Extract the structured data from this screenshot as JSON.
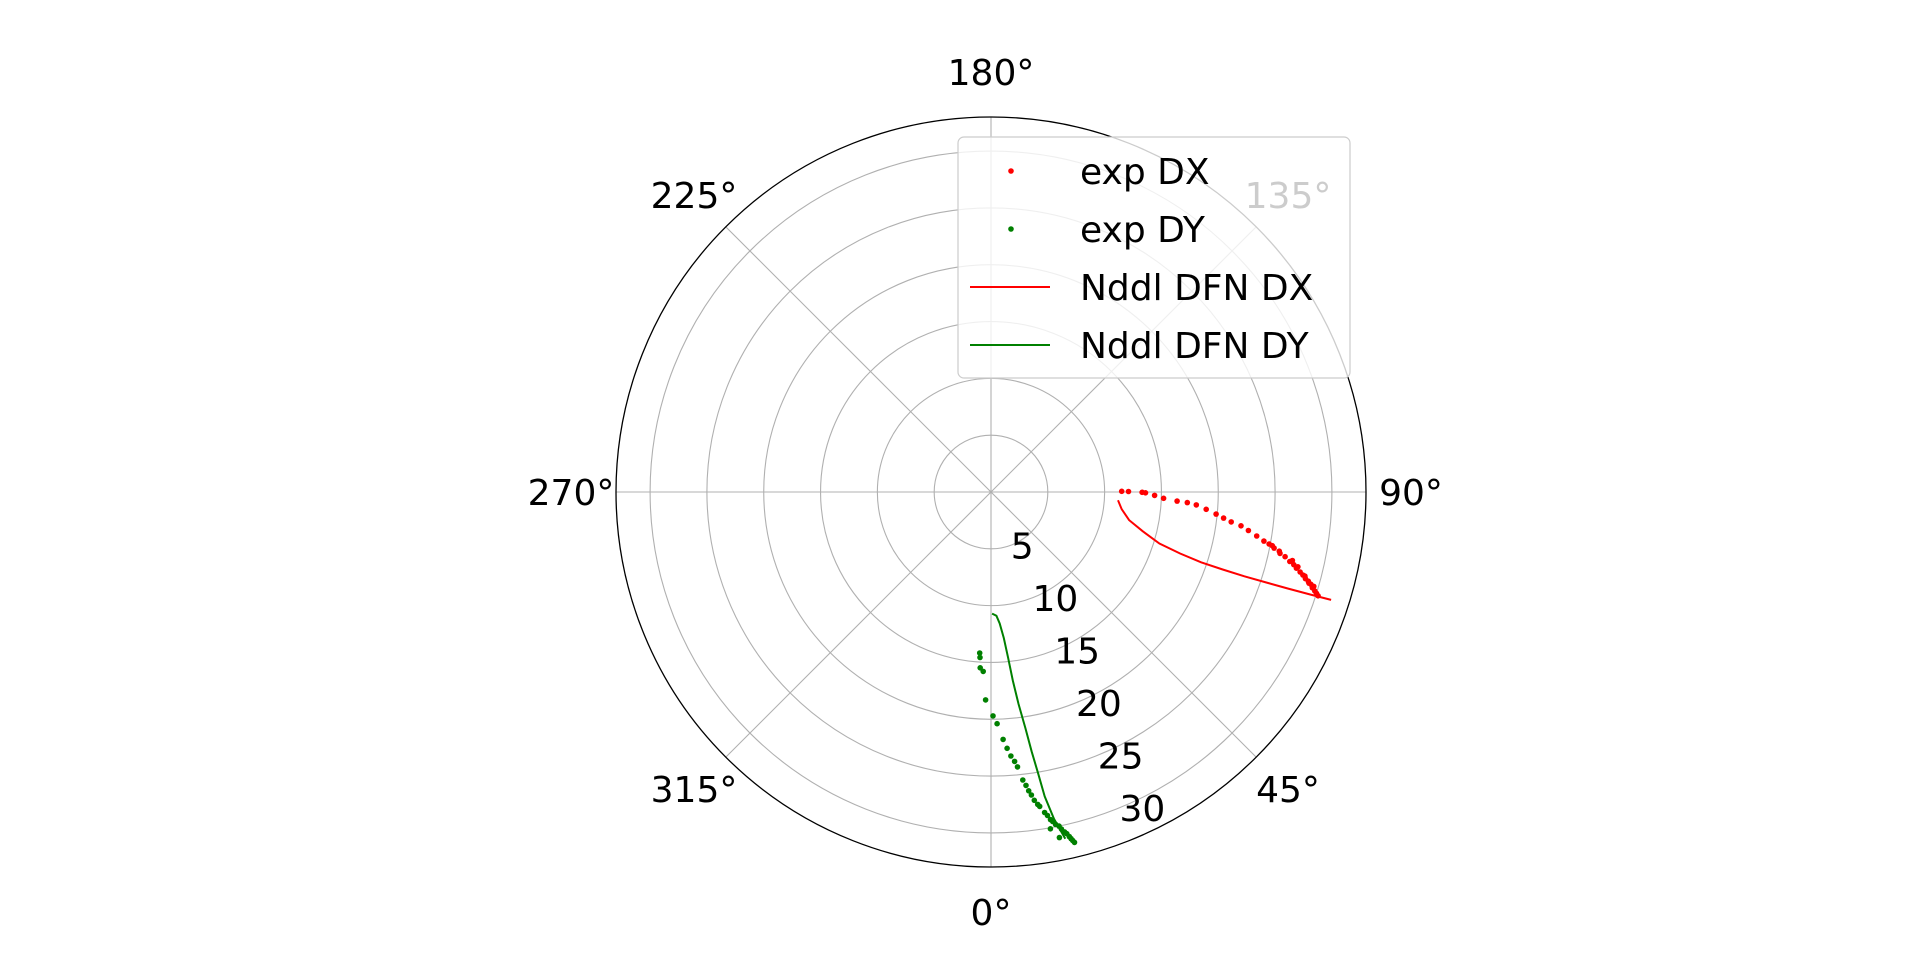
{
  "chart_data": {
    "type": "scatter",
    "projection": "polar",
    "theta_zero_location": "bottom",
    "theta_direction": "counterclockwise",
    "rlim": [
      0,
      33
    ],
    "r_ticks": [
      5,
      10,
      15,
      20,
      25,
      30
    ],
    "r_tick_labels": [
      "5",
      "10",
      "15",
      "20",
      "25",
      "30"
    ],
    "theta_ticks": [
      0,
      45,
      90,
      135,
      180,
      225,
      270,
      315
    ],
    "theta_tick_labels": [
      "0°",
      "45°",
      "90°",
      "135°",
      "180°",
      "225°",
      "270°",
      "315°"
    ],
    "grid": true,
    "legend_position": "top-right",
    "series": [
      {
        "name": "exp DX",
        "kind": "points",
        "color": "#ff0000",
        "points": [
          {
            "theta": 90.3,
            "r": 11.5
          },
          {
            "theta": 90.2,
            "r": 12.1
          },
          {
            "theta": 89.9,
            "r": 13.3
          },
          {
            "theta": 89.7,
            "r": 13.6
          },
          {
            "theta": 88.8,
            "r": 14.4
          },
          {
            "theta": 87.9,
            "r": 15.2
          },
          {
            "theta": 87.2,
            "r": 16.4
          },
          {
            "theta": 86.9,
            "r": 17.3
          },
          {
            "theta": 86.4,
            "r": 18.1
          },
          {
            "theta": 85.4,
            "r": 19.0
          },
          {
            "theta": 84.4,
            "r": 19.9
          },
          {
            "theta": 83.6,
            "r": 20.6
          },
          {
            "theta": 82.9,
            "r": 21.3
          },
          {
            "theta": 82.3,
            "r": 22.2
          },
          {
            "theta": 81.5,
            "r": 22.9
          },
          {
            "theta": 80.6,
            "r": 23.7
          },
          {
            "theta": 79.8,
            "r": 24.4
          },
          {
            "theta": 79.4,
            "r": 24.9
          },
          {
            "theta": 78.8,
            "r": 25.4
          },
          {
            "theta": 78.0,
            "r": 26.0
          },
          {
            "theta": 77.6,
            "r": 26.5
          },
          {
            "theta": 76.9,
            "r": 27.0
          },
          {
            "theta": 76.5,
            "r": 27.4
          },
          {
            "theta": 76.0,
            "r": 27.7
          },
          {
            "theta": 75.5,
            "r": 28.1
          },
          {
            "theta": 75.1,
            "r": 28.4
          },
          {
            "theta": 74.6,
            "r": 28.7
          },
          {
            "theta": 74.3,
            "r": 29.0
          },
          {
            "theta": 73.9,
            "r": 29.3
          },
          {
            "theta": 73.4,
            "r": 29.5
          },
          {
            "theta": 73.0,
            "r": 29.8
          },
          {
            "theta": 72.7,
            "r": 30.0
          },
          {
            "theta": 76.3,
            "r": 27.8
          },
          {
            "theta": 75.0,
            "r": 28.6
          },
          {
            "theta": 74.0,
            "r": 29.1
          },
          {
            "theta": 77.2,
            "r": 27.2
          },
          {
            "theta": 78.4,
            "r": 25.9
          },
          {
            "theta": 79.2,
            "r": 25.2
          },
          {
            "theta": 72.4,
            "r": 30.2
          },
          {
            "theta": 73.7,
            "r": 29.6
          }
        ]
      },
      {
        "name": "exp DY",
        "kind": "points",
        "color": "#008000",
        "points": [
          {
            "theta": -4.0,
            "r": 14.2
          },
          {
            "theta": -3.8,
            "r": 14.6
          },
          {
            "theta": -3.5,
            "r": 15.5
          },
          {
            "theta": -2.5,
            "r": 15.8
          },
          {
            "theta": -1.5,
            "r": 18.3
          },
          {
            "theta": 0.5,
            "r": 19.7
          },
          {
            "theta": 1.5,
            "r": 20.4
          },
          {
            "theta": 2.8,
            "r": 21.8
          },
          {
            "theta": 3.6,
            "r": 22.6
          },
          {
            "theta": 4.3,
            "r": 23.3
          },
          {
            "theta": 5.5,
            "r": 24.3
          },
          {
            "theta": 6.3,
            "r": 25.5
          },
          {
            "theta": 7.2,
            "r": 26.5
          },
          {
            "theta": 8.0,
            "r": 27.4
          },
          {
            "theta": 8.8,
            "r": 28.0
          },
          {
            "theta": 9.5,
            "r": 28.6
          },
          {
            "theta": 10.3,
            "r": 29.3
          },
          {
            "theta": 11.0,
            "r": 29.8
          },
          {
            "theta": 11.8,
            "r": 30.3
          },
          {
            "theta": 12.5,
            "r": 30.8
          },
          {
            "theta": 13.0,
            "r": 31.3
          },
          {
            "theta": 13.4,
            "r": 31.7
          },
          {
            "theta": 12.8,
            "r": 31.1
          },
          {
            "theta": 11.5,
            "r": 30.0
          },
          {
            "theta": 10.6,
            "r": 29.5
          },
          {
            "theta": 9.9,
            "r": 28.9
          },
          {
            "theta": 8.5,
            "r": 27.8
          },
          {
            "theta": 7.6,
            "r": 26.9
          },
          {
            "theta": 6.8,
            "r": 26.0
          },
          {
            "theta": 5.0,
            "r": 23.8
          },
          {
            "theta": 12.2,
            "r": 30.6
          },
          {
            "theta": 13.2,
            "r": 31.5
          },
          {
            "theta": 10.0,
            "r": 30.1
          },
          {
            "theta": 11.2,
            "r": 31.0
          }
        ]
      },
      {
        "name": "Nddl DFN DX",
        "kind": "line",
        "color": "#ff0000",
        "points": [
          {
            "theta": 86.3,
            "r": 11.2
          },
          {
            "theta": 82.5,
            "r": 11.6
          },
          {
            "theta": 78.5,
            "r": 12.4
          },
          {
            "theta": 75.5,
            "r": 13.8
          },
          {
            "theta": 73.0,
            "r": 15.5
          },
          {
            "theta": 72.0,
            "r": 17.5
          },
          {
            "theta": 71.5,
            "r": 19.5
          },
          {
            "theta": 71.5,
            "r": 21.5
          },
          {
            "theta": 71.6,
            "r": 23.5
          },
          {
            "theta": 71.8,
            "r": 25.5
          },
          {
            "theta": 72.0,
            "r": 27.5
          },
          {
            "theta": 72.2,
            "r": 29.5
          },
          {
            "theta": 72.4,
            "r": 31.4
          }
        ]
      },
      {
        "name": "Nddl DFN DY",
        "kind": "line",
        "color": "#008000",
        "points": [
          {
            "theta": 0.5,
            "r": 10.7
          },
          {
            "theta": 2.5,
            "r": 10.9
          },
          {
            "theta": 3.8,
            "r": 11.6
          },
          {
            "theta": 5.0,
            "r": 12.9
          },
          {
            "theta": 5.9,
            "r": 14.7
          },
          {
            "theta": 6.6,
            "r": 16.7
          },
          {
            "theta": 7.4,
            "r": 18.8
          },
          {
            "theta": 8.3,
            "r": 21.0
          },
          {
            "theta": 8.9,
            "r": 23.1
          },
          {
            "theta": 9.5,
            "r": 25.1
          },
          {
            "theta": 10.0,
            "r": 27.2
          },
          {
            "theta": 10.9,
            "r": 29.3
          },
          {
            "theta": 12.1,
            "r": 31.2
          }
        ]
      }
    ]
  }
}
